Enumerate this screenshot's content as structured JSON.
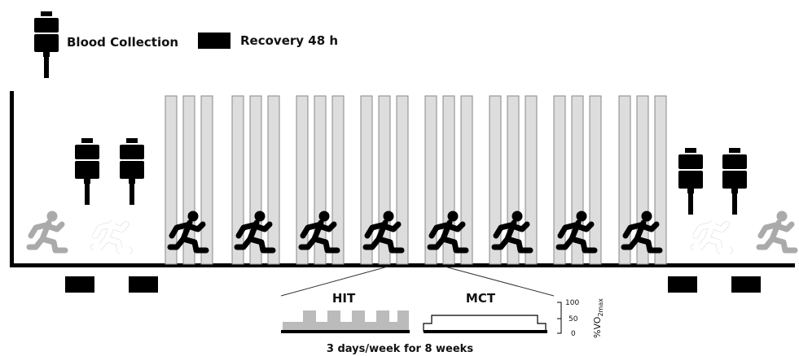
{
  "legend": {
    "blood": "Blood Collection",
    "recovery": "Recovery 48 h"
  },
  "protocols": {
    "hit": "HIT",
    "mct": "MCT"
  },
  "scale": {
    "ticks": [
      "100",
      "50",
      "0"
    ],
    "unit": "%VO",
    "unit_sub": "2max"
  },
  "caption": "3 days/week for 8 weeks"
}
